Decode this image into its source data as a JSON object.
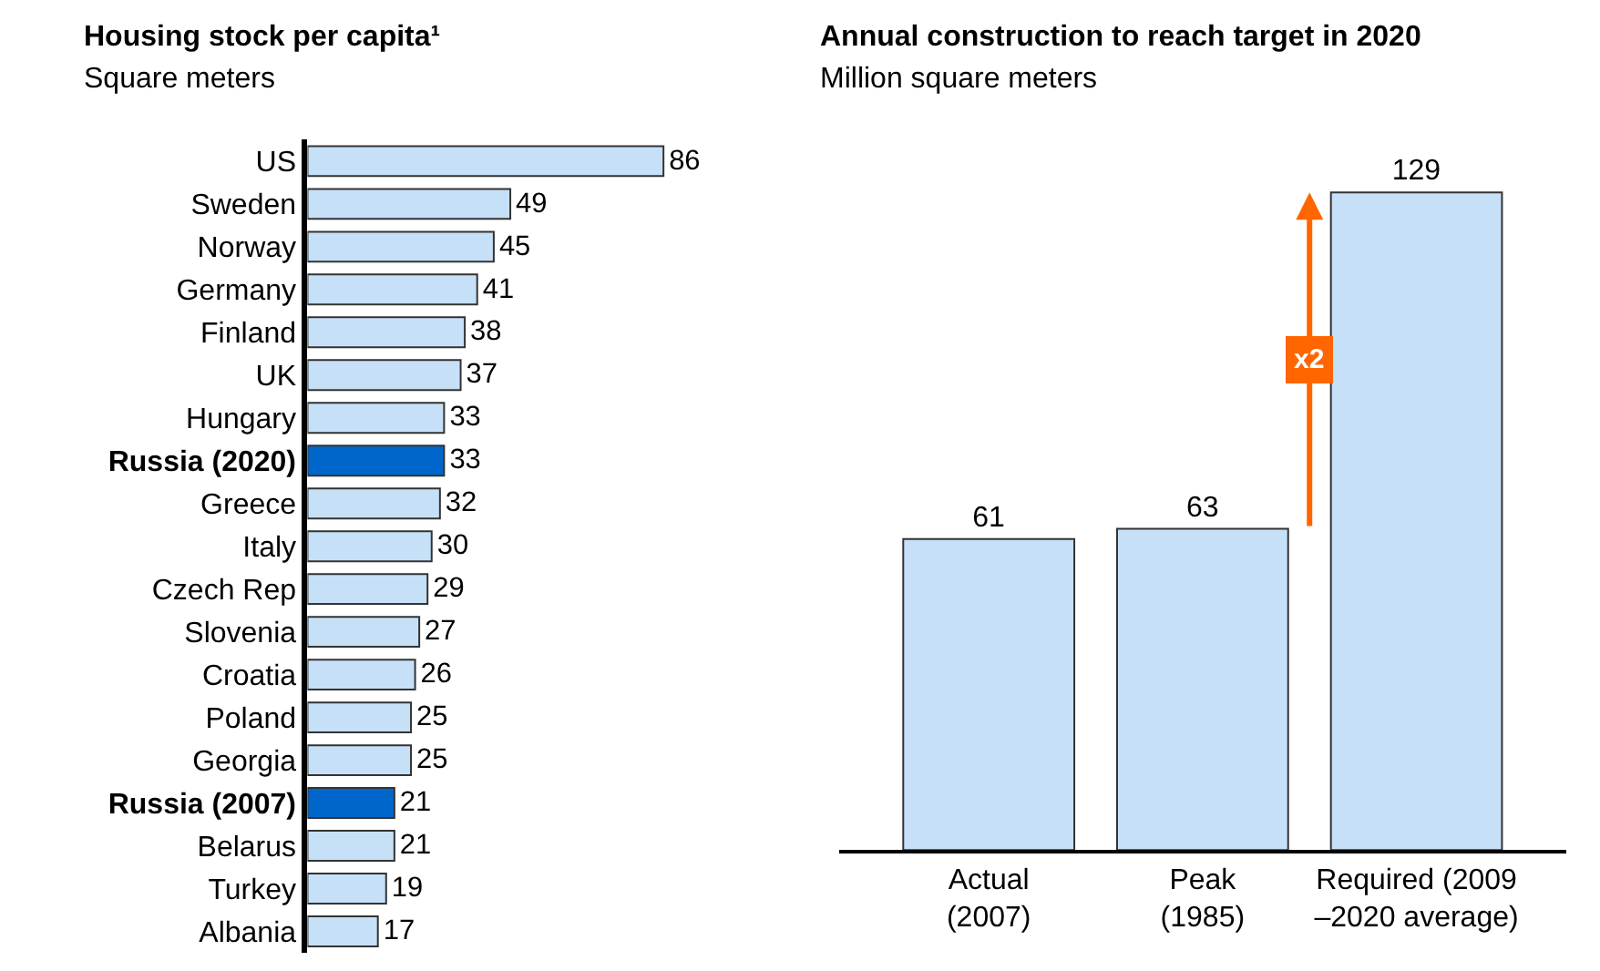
{
  "chart_data": [
    {
      "type": "bar",
      "orientation": "horizontal",
      "title": "Housing stock per capita¹",
      "subtitle": "Square meters",
      "categories": [
        "US",
        "Sweden",
        "Norway",
        "Germany",
        "Finland",
        "UK",
        "Hungary",
        "Russia (2020)",
        "Greece",
        "Italy",
        "Czech Rep",
        "Slovenia",
        "Croatia",
        "Poland",
        "Georgia",
        "Russia (2007)",
        "Belarus",
        "Turkey",
        "Albania"
      ],
      "values": [
        86,
        49,
        45,
        41,
        38,
        37,
        33,
        33,
        32,
        30,
        29,
        27,
        26,
        25,
        25,
        21,
        21,
        19,
        17
      ],
      "colors": [
        "#c6e0f8",
        "#c6e0f8",
        "#c6e0f8",
        "#c6e0f8",
        "#c6e0f8",
        "#c6e0f8",
        "#c6e0f8",
        "#0066cc",
        "#c6e0f8",
        "#c6e0f8",
        "#c6e0f8",
        "#c6e0f8",
        "#c6e0f8",
        "#c6e0f8",
        "#c6e0f8",
        "#0066cc",
        "#c6e0f8",
        "#c6e0f8",
        "#c6e0f8"
      ],
      "data_labels": true
    },
    {
      "type": "bar",
      "title": "Annual construction to reach target in 2020",
      "subtitle": "Million square meters",
      "categories": [
        "Actual\n(2007)",
        "Peak\n(1985)",
        "Required (2009\n–2020 average)"
      ],
      "values": [
        61,
        63,
        129
      ],
      "color": "#c6e0f8",
      "data_labels": true,
      "annotations": [
        "x2"
      ]
    }
  ]
}
